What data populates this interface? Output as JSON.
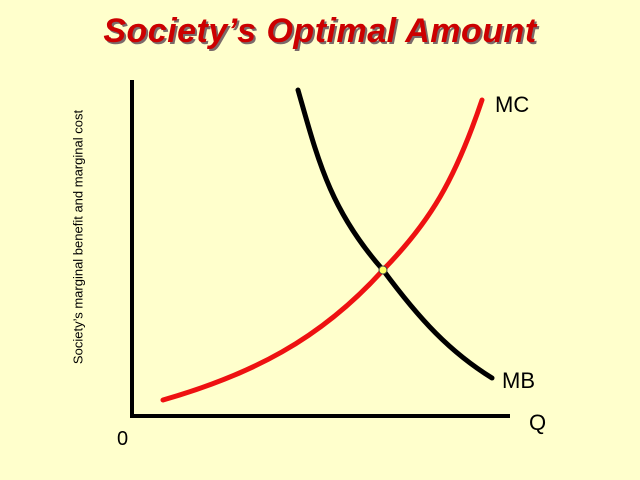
{
  "title": "Society’s Optimal Amount",
  "axes": {
    "y_label": "Society’s marginal benefit and marginal cost",
    "x_label": "Q",
    "origin_label": "0"
  },
  "curves": {
    "mc": {
      "label": "MC",
      "color": "#ee1111"
    },
    "mb": {
      "label": "MB",
      "color": "#000000"
    }
  },
  "equilibrium_point_color": "#ffff66"
}
